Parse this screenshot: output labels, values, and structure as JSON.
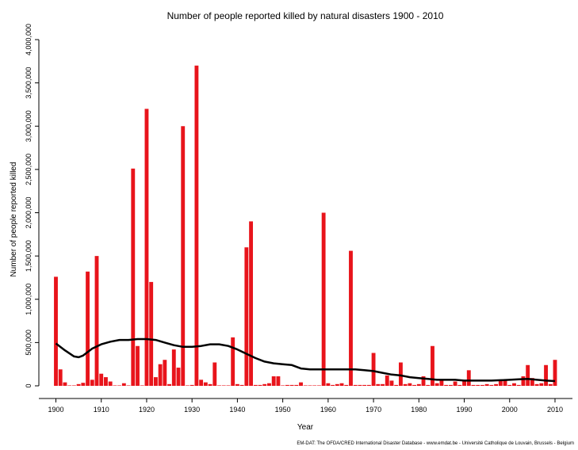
{
  "chart_data": {
    "type": "bar",
    "title": "Number of people reported killed by natural disasters 1900 - 2010",
    "xlabel": "Year",
    "ylabel": "Number of people reported killed",
    "source": "EM-DAT: The OFDA/CRED International Disaster Database - www.emdat.be - Université Catholique de Louvain, Brussels - Belgium",
    "xlim": [
      1900,
      2010
    ],
    "ylim": [
      0,
      4000000
    ],
    "grid": false,
    "legend": "none",
    "bar_color": "#e8141b",
    "trend_color": "#000000",
    "x_ticks": [
      1900,
      1910,
      1920,
      1930,
      1940,
      1950,
      1960,
      1970,
      1980,
      1990,
      2000,
      2010
    ],
    "x_tick_labels": [
      "1900",
      "1910",
      "1920",
      "1930",
      "1940",
      "1950",
      "1960",
      "1970",
      "1980",
      "1990",
      "2000",
      "2010"
    ],
    "y_ticks": [
      0,
      500000,
      1000000,
      1500000,
      2000000,
      2500000,
      3000000,
      3500000,
      4000000
    ],
    "y_tick_labels": [
      "0",
      "500,000",
      "1,000,000",
      "1,500,000",
      "2,000,000",
      "2,500,000",
      "3,000,000",
      "3,500,000",
      "4,000,000"
    ],
    "series": [
      {
        "kind": "bar",
        "x": [
          1900,
          1901,
          1902,
          1903,
          1904,
          1905,
          1906,
          1907,
          1908,
          1909,
          1910,
          1911,
          1912,
          1913,
          1914,
          1915,
          1916,
          1917,
          1918,
          1919,
          1920,
          1921,
          1922,
          1923,
          1924,
          1925,
          1926,
          1927,
          1928,
          1929,
          1930,
          1931,
          1932,
          1933,
          1934,
          1935,
          1936,
          1937,
          1938,
          1939,
          1940,
          1941,
          1942,
          1943,
          1944,
          1945,
          1946,
          1947,
          1948,
          1949,
          1950,
          1951,
          1952,
          1953,
          1954,
          1955,
          1956,
          1957,
          1958,
          1959,
          1960,
          1961,
          1962,
          1963,
          1964,
          1965,
          1966,
          1967,
          1968,
          1969,
          1970,
          1971,
          1972,
          1973,
          1974,
          1975,
          1976,
          1977,
          1978,
          1979,
          1980,
          1981,
          1982,
          1983,
          1984,
          1985,
          1986,
          1987,
          1988,
          1989,
          1990,
          1991,
          1992,
          1993,
          1994,
          1995,
          1996,
          1997,
          1998,
          1999,
          2000,
          2001,
          2002,
          2003,
          2004,
          2005,
          2006,
          2007,
          2008,
          2009,
          2010
        ],
        "values": [
          1260000,
          190000,
          40000,
          5000,
          5000,
          20000,
          35000,
          1320000,
          70000,
          1500000,
          140000,
          100000,
          50000,
          5000,
          5000,
          30000,
          5000,
          2510000,
          460000,
          5000,
          3200000,
          1200000,
          100000,
          250000,
          300000,
          20000,
          420000,
          210000,
          3000000,
          5000,
          10000,
          3700000,
          70000,
          40000,
          20000,
          270000,
          5000,
          5000,
          5000,
          560000,
          20000,
          10000,
          1600000,
          1900000,
          10000,
          10000,
          20000,
          30000,
          110000,
          110000,
          5000,
          10000,
          10000,
          10000,
          40000,
          5000,
          5000,
          5000,
          5000,
          2000000,
          30000,
          10000,
          20000,
          30000,
          10000,
          1560000,
          10000,
          10000,
          10000,
          10000,
          380000,
          20000,
          20000,
          120000,
          60000,
          10000,
          270000,
          20000,
          30000,
          10000,
          20000,
          110000,
          10000,
          460000,
          30000,
          60000,
          10000,
          10000,
          50000,
          10000,
          60000,
          180000,
          10000,
          10000,
          10000,
          20000,
          10000,
          20000,
          70000,
          60000,
          10000,
          30000,
          10000,
          110000,
          240000,
          90000,
          20000,
          30000,
          240000,
          20000,
          300000
        ]
      },
      {
        "kind": "line",
        "x": [
          1900,
          1902,
          1904,
          1905,
          1906,
          1908,
          1910,
          1912,
          1914,
          1916,
          1918,
          1920,
          1922,
          1924,
          1926,
          1928,
          1930,
          1932,
          1934,
          1936,
          1938,
          1940,
          1942,
          1944,
          1946,
          1948,
          1950,
          1952,
          1954,
          1956,
          1958,
          1960,
          1962,
          1964,
          1966,
          1968,
          1970,
          1972,
          1974,
          1976,
          1978,
          1980,
          1982,
          1984,
          1986,
          1988,
          1990,
          1992,
          1994,
          1996,
          1998,
          2000,
          2002,
          2004,
          2006,
          2008,
          2010
        ],
        "values": [
          490000,
          410000,
          340000,
          330000,
          350000,
          430000,
          480000,
          510000,
          530000,
          530000,
          540000,
          540000,
          530000,
          500000,
          470000,
          450000,
          450000,
          460000,
          480000,
          480000,
          460000,
          420000,
          370000,
          320000,
          280000,
          260000,
          250000,
          240000,
          200000,
          190000,
          190000,
          190000,
          190000,
          190000,
          190000,
          180000,
          170000,
          150000,
          130000,
          120000,
          100000,
          90000,
          80000,
          70000,
          70000,
          70000,
          60000,
          60000,
          60000,
          60000,
          65000,
          70000,
          75000,
          80000,
          70000,
          60000,
          55000
        ]
      }
    ]
  }
}
